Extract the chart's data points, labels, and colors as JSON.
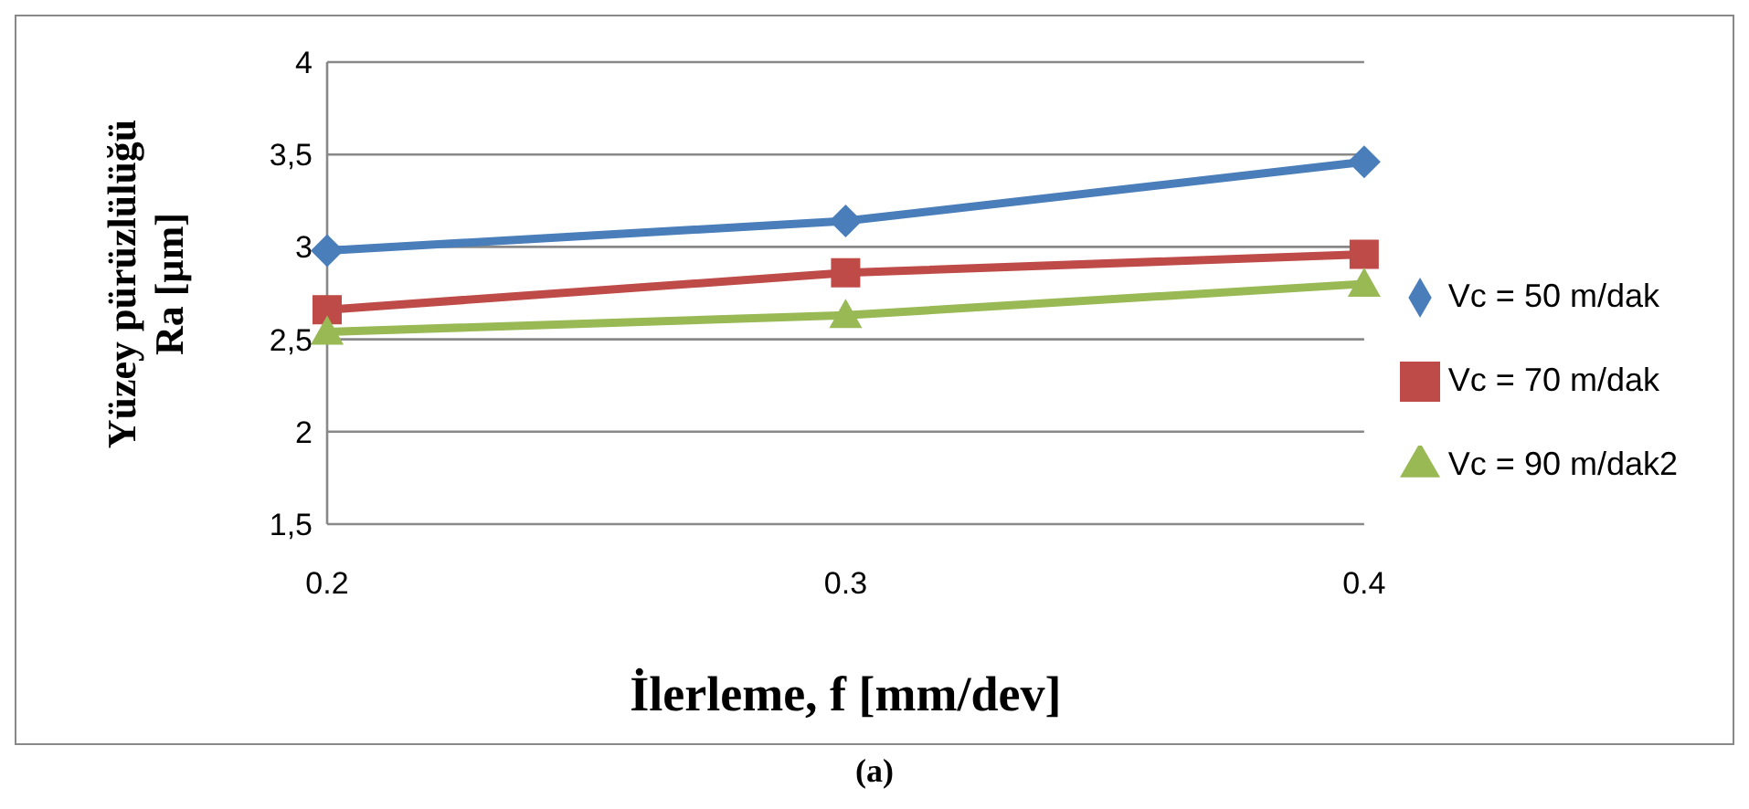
{
  "chart_data": {
    "type": "line",
    "xlabel": "İlerleme, f [mm/dev]",
    "ylabel": "Yüzey pürüzlülüğü\nRa [µm]",
    "categories": [
      "0.2",
      "0.3",
      "0.4"
    ],
    "series": [
      {
        "name": "Vc = 50 m/dak",
        "color": "#4a7ebb",
        "marker": "diamond",
        "values": [
          2.98,
          3.14,
          3.46
        ]
      },
      {
        "name": "Vc = 70 m/dak",
        "color": "#be4b48",
        "marker": "square",
        "values": [
          2.66,
          2.86,
          2.96
        ]
      },
      {
        "name": "Vc = 90 m/dak2",
        "color": "#98b954",
        "marker": "triangle",
        "values": [
          2.54,
          2.63,
          2.8
        ]
      }
    ],
    "ylim": [
      1.5,
      4
    ],
    "yticks": [
      {
        "value": 1.5,
        "label": "1,5"
      },
      2,
      {
        "value": 2.5,
        "label": "2,5"
      },
      3,
      {
        "value": 3.5,
        "label": "3,5"
      },
      4
    ],
    "grid": "y",
    "legend": "right",
    "annotations": [
      "(a)"
    ]
  }
}
